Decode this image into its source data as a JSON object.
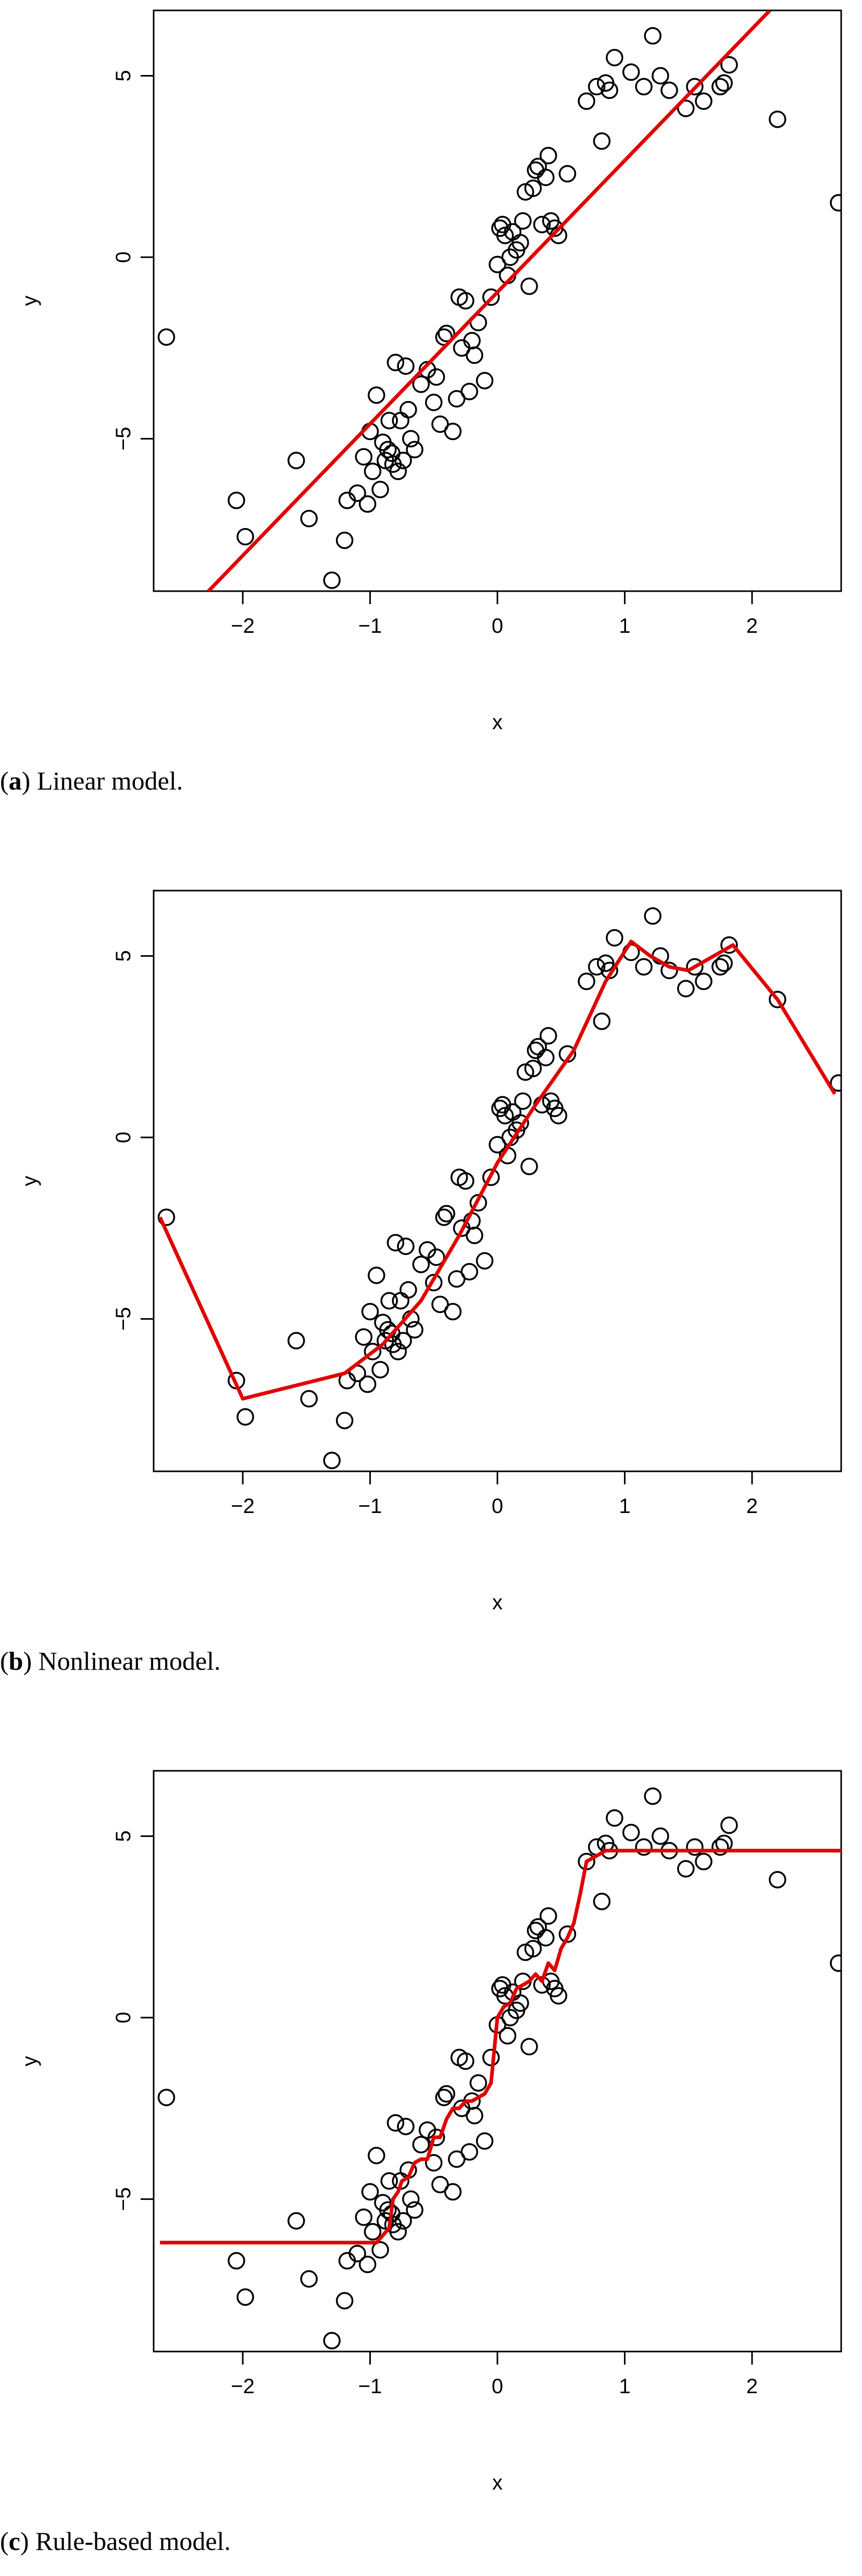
{
  "chart_data": [
    {
      "type": "scatter",
      "caption_letter": "a",
      "caption_text": " Linear model.",
      "xlabel": "x",
      "ylabel": "y",
      "xlim": [
        -2.7,
        2.7
      ],
      "ylim": [
        -9.2,
        6.8
      ],
      "xticks": [
        -2,
        -1,
        0,
        1,
        2
      ],
      "yticks": [
        -5,
        0,
        5
      ],
      "fit_color": "#e00000",
      "fit_line": {
        "x": [
          -2.27,
          2.14
        ],
        "y": [
          -9.2,
          6.8
        ]
      }
    },
    {
      "type": "scatter",
      "caption_letter": "b",
      "caption_text": " Nonlinear model.",
      "xlabel": "x",
      "ylabel": "y",
      "xlim": [
        -2.7,
        2.7
      ],
      "ylim": [
        -9.2,
        6.8
      ],
      "xticks": [
        -2,
        -1,
        0,
        1,
        2
      ],
      "yticks": [
        -5,
        0,
        5
      ],
      "fit_color": "#e00000",
      "fit_line": {
        "x": [
          -2.65,
          -2.0,
          -1.2,
          -0.9,
          -0.6,
          -0.3,
          0.0,
          0.3,
          0.6,
          0.85,
          1.05,
          1.2,
          1.35,
          1.5,
          1.65,
          1.85,
          2.2,
          2.65
        ],
        "y": [
          -2.2,
          -7.2,
          -6.5,
          -5.7,
          -4.5,
          -2.7,
          -0.7,
          0.9,
          2.4,
          4.3,
          5.4,
          5.0,
          4.7,
          4.6,
          4.9,
          5.3,
          3.8,
          1.2
        ]
      }
    },
    {
      "type": "scatter",
      "caption_letter": "c",
      "caption_text": " Rule-based model.",
      "xlabel": "x",
      "ylabel": "y",
      "xlim": [
        -2.7,
        2.7
      ],
      "ylim": [
        -9.2,
        6.8
      ],
      "xticks": [
        -2,
        -1,
        0,
        1,
        2
      ],
      "yticks": [
        -5,
        0,
        5
      ],
      "fit_color": "#e00000",
      "fit_line": {
        "x": [
          -2.65,
          -0.95,
          -0.85,
          -0.82,
          -0.78,
          -0.75,
          -0.7,
          -0.65,
          -0.6,
          -0.55,
          -0.5,
          -0.45,
          -0.4,
          -0.35,
          -0.3,
          -0.25,
          -0.2,
          -0.15,
          -0.1,
          -0.05,
          0.0,
          0.05,
          0.1,
          0.15,
          0.2,
          0.25,
          0.3,
          0.35,
          0.4,
          0.45,
          0.5,
          0.55,
          0.6,
          0.65,
          0.7,
          0.85,
          0.9,
          2.7
        ],
        "y": [
          -6.2,
          -6.2,
          -5.8,
          -5.0,
          -4.8,
          -4.5,
          -4.4,
          -4.0,
          -3.9,
          -3.9,
          -3.3,
          -3.3,
          -2.8,
          -2.5,
          -2.5,
          -2.3,
          -2.3,
          -2.2,
          -2.1,
          -1.8,
          0.0,
          0.3,
          0.4,
          0.8,
          0.9,
          1.0,
          1.2,
          1.0,
          1.5,
          1.3,
          1.9,
          2.2,
          2.6,
          3.4,
          4.3,
          4.6,
          4.6,
          4.6
        ]
      }
    }
  ],
  "shared_points": {
    "x": [
      -2.6,
      -2.05,
      -1.98,
      -1.58,
      -1.48,
      -1.3,
      -1.2,
      -1.18,
      -1.1,
      -1.05,
      -1.02,
      -1.0,
      -0.98,
      -0.95,
      -0.92,
      -0.9,
      -0.88,
      -0.86,
      -0.85,
      -0.83,
      -0.82,
      -0.8,
      -0.78,
      -0.76,
      -0.74,
      -0.72,
      -0.7,
      -0.68,
      -0.65,
      -0.6,
      -0.55,
      -0.5,
      -0.48,
      -0.45,
      -0.42,
      -0.4,
      -0.35,
      -0.32,
      -0.3,
      -0.28,
      -0.25,
      -0.22,
      -0.2,
      -0.18,
      -0.15,
      -0.1,
      -0.05,
      0.0,
      0.02,
      0.04,
      0.06,
      0.08,
      0.1,
      0.12,
      0.15,
      0.18,
      0.2,
      0.22,
      0.25,
      0.28,
      0.3,
      0.32,
      0.35,
      0.38,
      0.4,
      0.42,
      0.45,
      0.48,
      0.55,
      0.7,
      0.78,
      0.82,
      0.85,
      0.88,
      0.92,
      1.05,
      1.15,
      1.22,
      1.28,
      1.35,
      1.48,
      1.55,
      1.62,
      1.75,
      1.78,
      1.82,
      2.2,
      2.68
    ],
    "y": [
      -2.2,
      -6.7,
      -7.7,
      -5.6,
      -7.2,
      -8.9,
      -7.8,
      -6.7,
      -6.5,
      -5.5,
      -6.8,
      -4.8,
      -5.9,
      -3.8,
      -6.4,
      -5.1,
      -5.6,
      -5.3,
      -4.5,
      -5.4,
      -5.7,
      -2.9,
      -5.9,
      -4.5,
      -5.6,
      -3.0,
      -4.2,
      -5.0,
      -5.3,
      -3.5,
      -3.1,
      -4.0,
      -3.3,
      -4.6,
      -2.2,
      -2.1,
      -4.8,
      -3.9,
      -1.1,
      -2.5,
      -1.2,
      -3.7,
      -2.3,
      -2.7,
      -1.8,
      -3.4,
      -1.1,
      -0.2,
      0.8,
      0.9,
      0.6,
      -0.5,
      0.0,
      0.7,
      0.2,
      0.4,
      1.0,
      1.8,
      -0.8,
      1.9,
      2.4,
      2.5,
      0.9,
      2.2,
      2.8,
      1.0,
      0.8,
      0.6,
      2.3,
      4.3,
      4.7,
      3.2,
      4.8,
      4.6,
      5.5,
      5.1,
      4.7,
      6.1,
      5.0,
      4.6,
      4.1,
      4.7,
      4.3,
      4.7,
      4.8,
      5.3,
      3.8,
      1.5
    ]
  }
}
